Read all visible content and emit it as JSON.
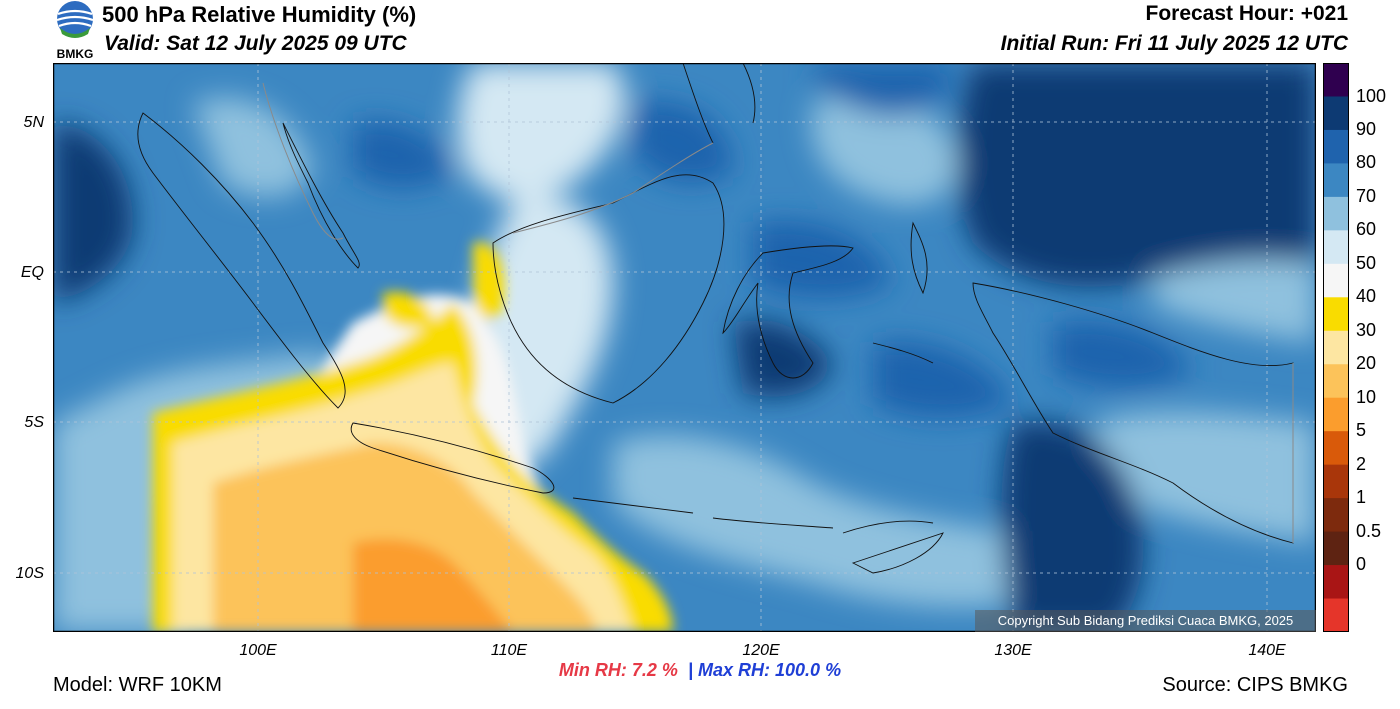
{
  "header": {
    "title": "500 hPa Relative Humidity (%)",
    "valid": "Valid: Sat 12 July 2025 09 UTC",
    "forecast_hour": "Forecast Hour: +021",
    "initial_run": "Initial Run: Fri 11 July 2025 12 UTC"
  },
  "logo": {
    "text": "BMKG",
    "icon": "bmkg-logo"
  },
  "map": {
    "lat_labels": [
      "5N",
      "EQ",
      "5S",
      "10S"
    ],
    "lon_labels": [
      "100E",
      "110E",
      "120E",
      "130E",
      "140E"
    ],
    "copyright": "Copyright Sub Bidang Prediksi Cuaca BMKG, 2025"
  },
  "colorbar": {
    "labels": [
      "100",
      "90",
      "80",
      "70",
      "60",
      "50",
      "40",
      "30",
      "20",
      "10",
      "5",
      "2",
      "1",
      "0.5",
      "0"
    ],
    "colors": [
      "#2f004f",
      "#0d3a73",
      "#1f63ad",
      "#3c87c2",
      "#8fc1de",
      "#d4e8f3",
      "#f6f6f6",
      "#f9dc00",
      "#fde6a2",
      "#fcc35a",
      "#fb9d2d",
      "#d95a0a",
      "#a9360a",
      "#7d2a0d",
      "#5e2312",
      "#a91515",
      "#e5352a"
    ]
  },
  "stats": {
    "min_rh": "Min RH:   7.2 %",
    "separator": "|",
    "max_rh": "Max RH: 100.0 %"
  },
  "footer": {
    "model": "Model: WRF 10KM",
    "source": "Source: CIPS BMKG"
  }
}
